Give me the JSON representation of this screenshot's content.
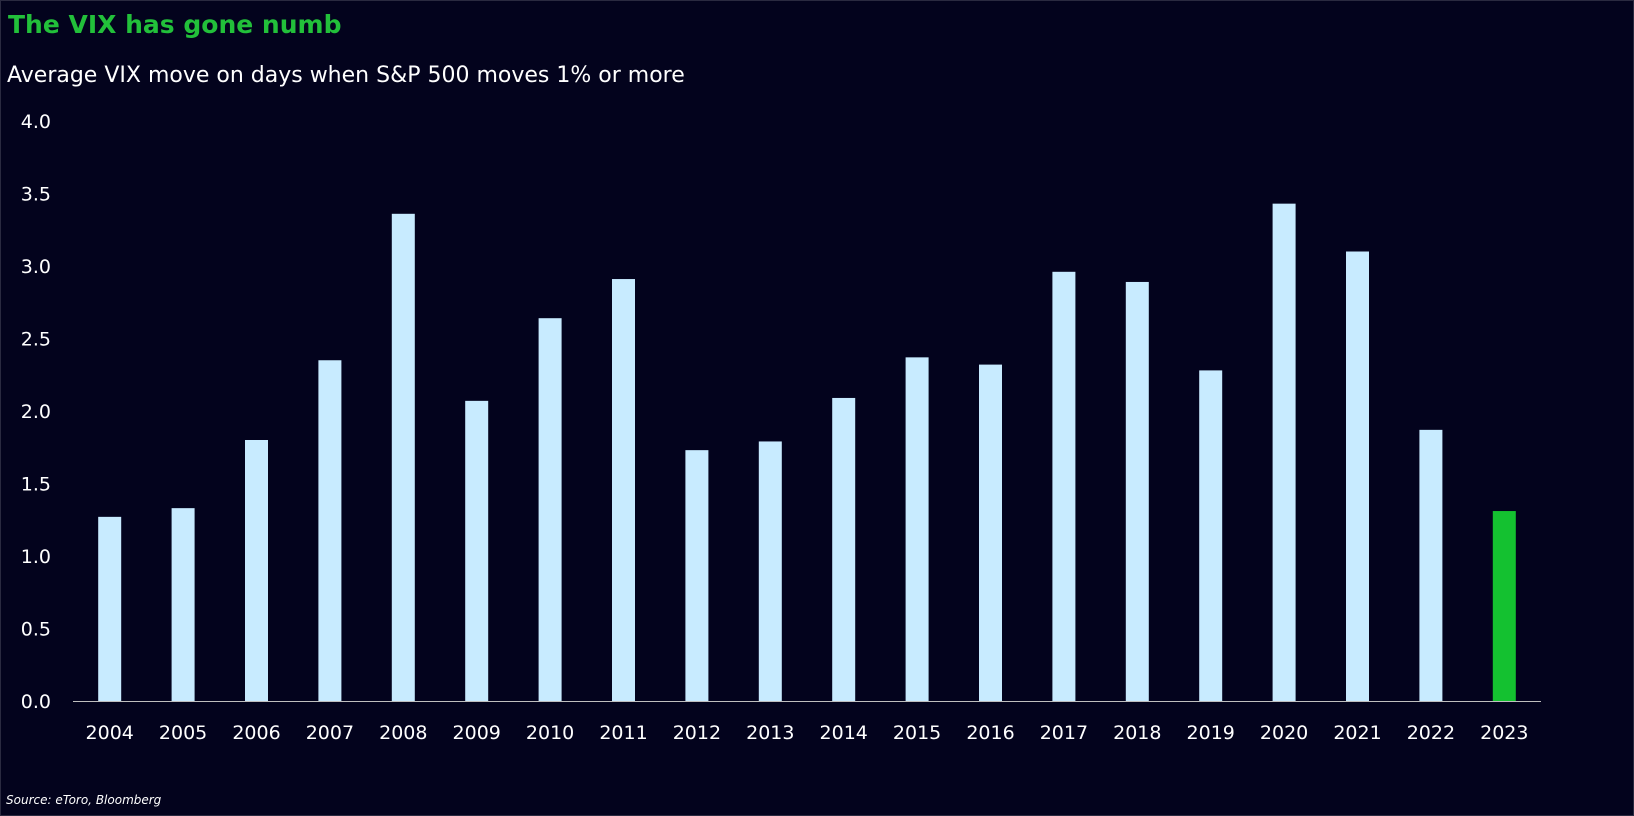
{
  "title": "The VIX has gone numb",
  "subtitle": "Average VIX move on days when S&P 500 moves 1% or more",
  "source": "Source: eToro, Bloomberg",
  "colors": {
    "background": "#03031d",
    "title": "#22c03a",
    "bar": "#c8ebff",
    "highlight_bar": "#14c130",
    "text": "#ffffff",
    "axis": "#bfbfbf"
  },
  "chart_data": {
    "type": "bar",
    "title": "The VIX has gone numb",
    "subtitle": "Average VIX move on days when S&P 500 moves 1% or more",
    "xlabel": "",
    "ylabel": "",
    "ylim": [
      0,
      4.0
    ],
    "yticks": [
      "0.0",
      "0.5",
      "1.0",
      "1.5",
      "2.0",
      "2.5",
      "3.0",
      "3.5",
      "4.0"
    ],
    "grid": false,
    "legend": "none",
    "categories": [
      "2004",
      "2005",
      "2006",
      "2007",
      "2008",
      "2009",
      "2010",
      "2011",
      "2012",
      "2013",
      "2014",
      "2015",
      "2016",
      "2017",
      "2018",
      "2019",
      "2020",
      "2021",
      "2022",
      "2023"
    ],
    "values": [
      1.27,
      1.33,
      1.8,
      2.35,
      3.36,
      2.07,
      2.64,
      2.91,
      1.73,
      1.79,
      2.09,
      2.37,
      2.32,
      2.96,
      2.89,
      2.28,
      3.43,
      3.1,
      1.87,
      1.31
    ],
    "highlight_category": "2023"
  }
}
